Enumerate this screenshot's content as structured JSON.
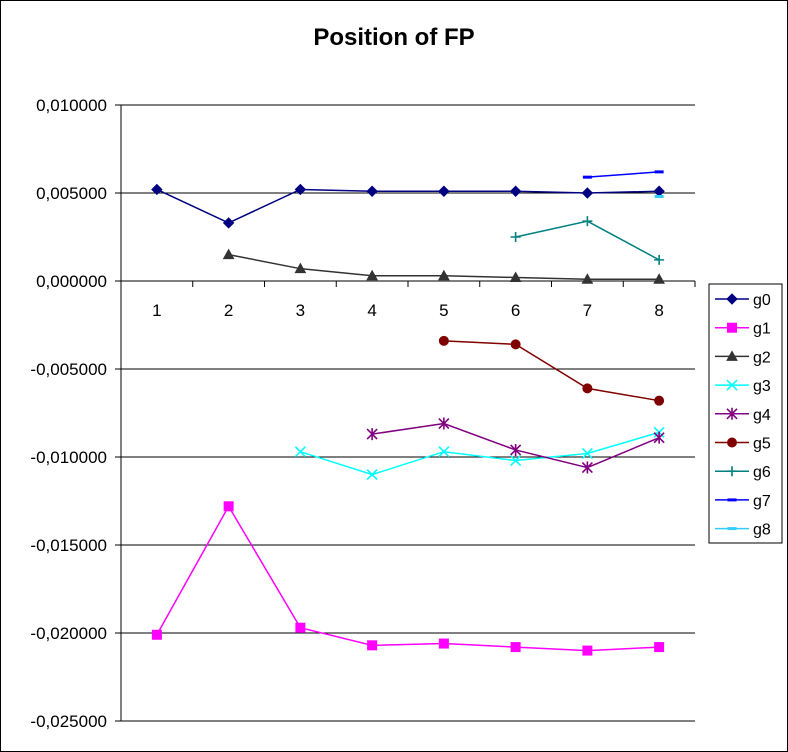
{
  "chart_data": {
    "type": "line",
    "title": "Position of FP",
    "categories": [
      "1",
      "2",
      "3",
      "4",
      "5",
      "6",
      "7",
      "8"
    ],
    "ylim": [
      -0.025,
      0.01
    ],
    "yticks": [
      0.01,
      0.005,
      0.0,
      -0.005,
      -0.01,
      -0.015,
      -0.02,
      -0.025
    ],
    "ytick_labels": [
      "0,010000",
      "0,005000",
      "0,000000",
      "-0,005000",
      "-0,010000",
      "-0,015000",
      "-0,020000",
      "-0,025000"
    ],
    "grid": "horizontal major",
    "legend_position": "right",
    "series": [
      {
        "name": "g0",
        "color": "#000080",
        "marker": "diamond",
        "values": [
          0.0052,
          0.0033,
          0.0052,
          0.0051,
          0.0051,
          0.0051,
          0.005,
          0.0051
        ]
      },
      {
        "name": "g1",
        "color": "#FF00FF",
        "marker": "square",
        "values": [
          -0.0201,
          -0.0128,
          -0.0197,
          -0.0207,
          -0.0206,
          -0.0208,
          -0.021,
          -0.0208
        ]
      },
      {
        "name": "g2",
        "color": "#333333",
        "marker": "triangle",
        "values": [
          null,
          0.0015,
          0.0007,
          0.0003,
          0.0003,
          0.0002,
          0.0001,
          0.0001
        ]
      },
      {
        "name": "g3",
        "color": "#00FFFF",
        "marker": "x",
        "values": [
          null,
          null,
          -0.0097,
          -0.011,
          -0.0097,
          -0.0102,
          -0.0098,
          -0.0086
        ]
      },
      {
        "name": "g4",
        "color": "#800080",
        "marker": "asterisk",
        "values": [
          null,
          null,
          null,
          -0.0087,
          -0.0081,
          -0.0096,
          -0.0106,
          -0.0089
        ]
      },
      {
        "name": "g5",
        "color": "#800000",
        "marker": "circle",
        "values": [
          null,
          null,
          null,
          null,
          -0.0034,
          -0.0036,
          -0.0061,
          -0.0068
        ]
      },
      {
        "name": "g6",
        "color": "#008080",
        "marker": "plus",
        "values": [
          null,
          null,
          null,
          null,
          null,
          0.0025,
          0.0034,
          0.0012
        ]
      },
      {
        "name": "g7",
        "color": "#0000FF",
        "marker": "dash",
        "values": [
          null,
          null,
          null,
          null,
          null,
          null,
          0.0059,
          0.0062
        ]
      },
      {
        "name": "g8",
        "color": "#33CCFF",
        "marker": "dash",
        "values": [
          null,
          null,
          null,
          null,
          null,
          null,
          null,
          0.0048
        ]
      }
    ]
  }
}
